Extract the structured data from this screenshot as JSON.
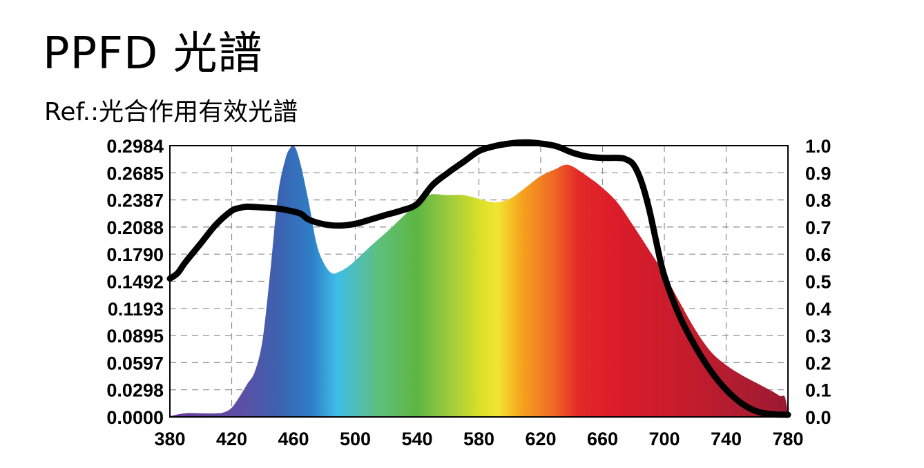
{
  "title": "PPFD 光譜",
  "subtitle": "Ref.:光合作用有效光譜",
  "chart_data": {
    "type": "area",
    "xlim": [
      380,
      780
    ],
    "y_left_ticks": [
      "0.0000",
      "0.0298",
      "0.0597",
      "0.0895",
      "0.1193",
      "0.1492",
      "0.1790",
      "0.2088",
      "0.2387",
      "0.2685",
      "0.2984"
    ],
    "y_left_lim": [
      0,
      0.2984
    ],
    "y_right_ticks": [
      "0.0",
      "0.1",
      "0.2",
      "0.3",
      "0.4",
      "0.5",
      "0.6",
      "0.7",
      "0.8",
      "0.9",
      "1.0"
    ],
    "y_right_lim": [
      0,
      1.0
    ],
    "x_ticks": [
      "380",
      "420",
      "460",
      "500",
      "540",
      "580",
      "620",
      "660",
      "700",
      "740",
      "780"
    ],
    "grid": true,
    "series": [
      {
        "axis": "left",
        "x": [
          380,
          390,
          400,
          410,
          415,
          420,
          425,
          430,
          435,
          440,
          445,
          450,
          455,
          458,
          460,
          462,
          465,
          470,
          475,
          480,
          485,
          490,
          495,
          500,
          510,
          520,
          530,
          540,
          545,
          550,
          560,
          570,
          580,
          590,
          600,
          610,
          620,
          630,
          635,
          640,
          650,
          660,
          670,
          680,
          690,
          700,
          710,
          720,
          730,
          740,
          750,
          760,
          770,
          775,
          778,
          780
        ],
        "y": [
          0.001,
          0.004,
          0.004,
          0.004,
          0.005,
          0.01,
          0.022,
          0.036,
          0.05,
          0.085,
          0.16,
          0.245,
          0.285,
          0.296,
          0.298,
          0.293,
          0.275,
          0.235,
          0.19,
          0.168,
          0.158,
          0.16,
          0.165,
          0.172,
          0.188,
          0.203,
          0.219,
          0.235,
          0.242,
          0.245,
          0.244,
          0.244,
          0.24,
          0.236,
          0.24,
          0.252,
          0.265,
          0.273,
          0.277,
          0.276,
          0.265,
          0.252,
          0.235,
          0.21,
          0.184,
          0.157,
          0.126,
          0.096,
          0.072,
          0.057,
          0.046,
          0.037,
          0.028,
          0.023,
          0.022,
          0.004
        ]
      },
      {
        "axis": "right",
        "x": [
          380,
          385,
          390,
          400,
          410,
          420,
          425,
          430,
          440,
          450,
          460,
          465,
          470,
          480,
          490,
          500,
          510,
          520,
          530,
          540,
          550,
          560,
          570,
          580,
          590,
          600,
          610,
          620,
          630,
          640,
          650,
          660,
          670,
          675,
          680,
          685,
          690,
          695,
          700,
          710,
          720,
          730,
          740,
          750,
          760,
          770,
          780
        ],
        "y": [
          0.51,
          0.53,
          0.57,
          0.64,
          0.71,
          0.76,
          0.77,
          0.775,
          0.772,
          0.768,
          0.757,
          0.748,
          0.727,
          0.71,
          0.705,
          0.712,
          0.728,
          0.745,
          0.761,
          0.785,
          0.855,
          0.9,
          0.94,
          0.98,
          0.998,
          1.008,
          1.012,
          1.008,
          0.998,
          0.975,
          0.96,
          0.955,
          0.955,
          0.95,
          0.93,
          0.87,
          0.77,
          0.64,
          0.52,
          0.37,
          0.26,
          0.17,
          0.1,
          0.05,
          0.02,
          0.01,
          0.008
        ]
      }
    ]
  }
}
